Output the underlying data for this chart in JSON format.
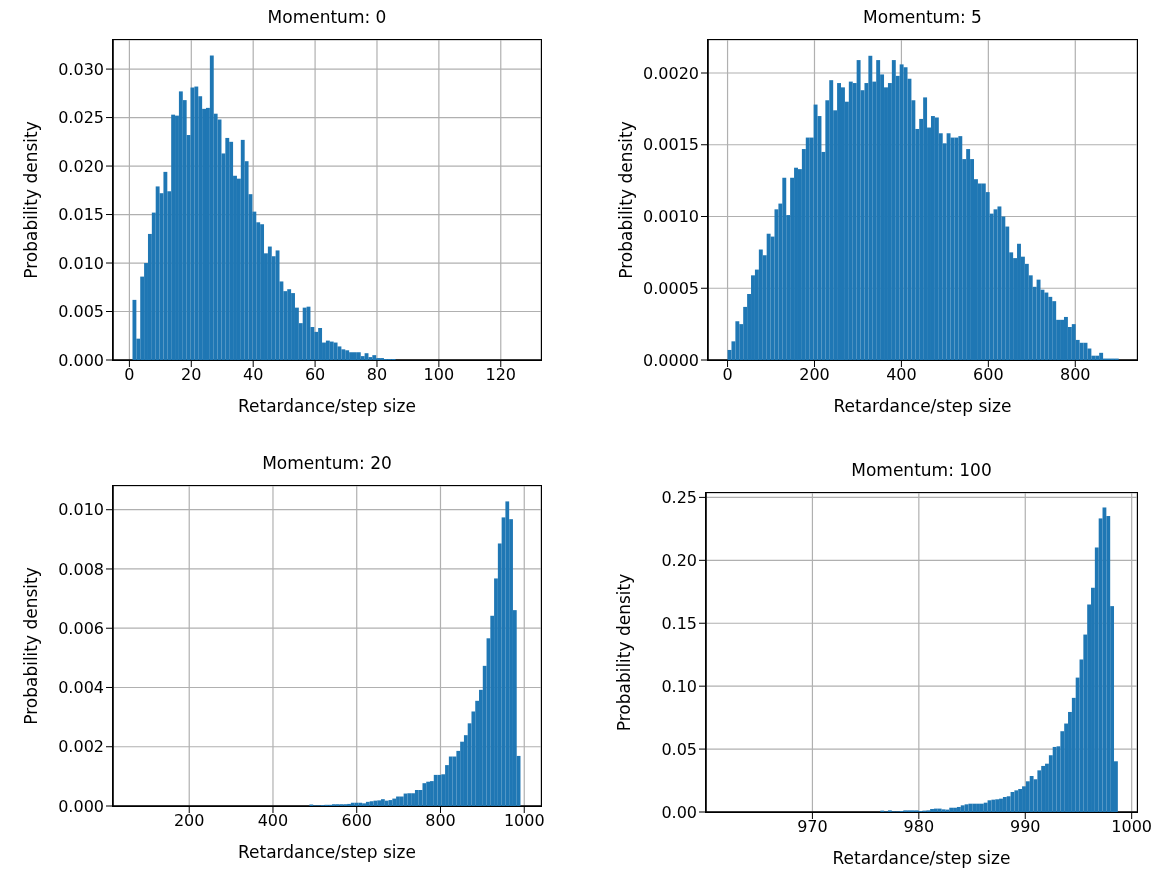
{
  "chart_data": [
    {
      "type": "histogram",
      "title": "Momentum: 0",
      "xlabel": "Retardance/step size",
      "ylabel": "Probability density",
      "color": "#1f77b4",
      "grid": true,
      "xlim": [
        -5.3,
        133
      ],
      "ylim": [
        0,
        0.033
      ],
      "xticks": [
        0,
        20,
        40,
        60,
        80,
        100,
        120
      ],
      "yticks": [
        {
          "value": 0,
          "label": "0.000"
        },
        {
          "value": 0.005,
          "label": "0.005"
        },
        {
          "value": 0.01,
          "label": "0.010"
        },
        {
          "value": 0.015,
          "label": "0.015"
        },
        {
          "value": 0.02,
          "label": "0.020"
        },
        {
          "value": 0.025,
          "label": "0.025"
        },
        {
          "value": 0.03,
          "label": "0.030"
        }
      ],
      "bins": [
        1,
        2.25,
        3.5,
        4.75,
        6,
        7.25,
        8.5,
        9.75,
        11,
        12.25,
        13.5,
        14.75,
        16,
        17.25,
        18.5,
        19.75,
        21,
        22.25,
        23.5,
        24.75,
        26,
        27.25,
        28.5,
        29.75,
        31,
        32.25,
        33.5,
        34.75,
        36,
        37.25,
        38.5,
        39.75,
        41,
        42.25,
        43.5,
        44.75,
        46,
        47.25,
        48.5,
        49.75,
        51,
        52.25,
        53.5,
        54.75,
        56,
        57.25,
        58.5,
        59.75,
        61,
        62.25,
        63.5,
        64.75,
        66,
        67.25,
        68.5,
        69.75,
        71,
        72.25,
        73.5,
        74.75,
        76,
        77.25,
        78.5,
        79.75,
        81,
        82.25,
        83.5,
        84.75,
        86
      ],
      "values": [
        0.0062,
        0.0022,
        0.0086,
        0.01,
        0.013,
        0.0152,
        0.0179,
        0.0172,
        0.0194,
        0.0174,
        0.0253,
        0.0252,
        0.0277,
        0.0268,
        0.0232,
        0.0281,
        0.0282,
        0.0272,
        0.0259,
        0.026,
        0.0314,
        0.0254,
        0.0248,
        0.0213,
        0.0229,
        0.0225,
        0.019,
        0.0187,
        0.0227,
        0.0205,
        0.0171,
        0.0153,
        0.0142,
        0.014,
        0.011,
        0.0117,
        0.0107,
        0.0113,
        0.0081,
        0.0071,
        0.0073,
        0.0069,
        0.0054,
        0.0038,
        0.0054,
        0.0055,
        0.0034,
        0.0029,
        0.0033,
        0.0018,
        0.002,
        0.0019,
        0.0018,
        0.0014,
        0.0011,
        0.001,
        0.0008,
        0.0008,
        0.0008,
        0.0004,
        0.0007,
        0.0003,
        0.0005,
        0.0002,
        0.0002,
        0.0001,
        0.0001,
        0.0001
      ]
    },
    {
      "type": "histogram",
      "title": "Momentum: 5",
      "xlabel": "Retardance/step size",
      "ylabel": "Probability density",
      "color": "#1f77b4",
      "grid": true,
      "xlim": [
        -45,
        942
      ],
      "ylim": [
        0,
        0.00223
      ],
      "xticks": [
        0,
        200,
        400,
        600,
        800
      ],
      "yticks": [
        {
          "value": 0,
          "label": "0.0000"
        },
        {
          "value": 0.0005,
          "label": "0.0005"
        },
        {
          "value": 0.001,
          "label": "0.0010"
        },
        {
          "value": 0.0015,
          "label": "0.0015"
        },
        {
          "value": 0.002,
          "label": "0.0020"
        }
      ],
      "bins": [
        0,
        9,
        18,
        27,
        36,
        45,
        54,
        63,
        72,
        81,
        90,
        99,
        108,
        117,
        126,
        135,
        144,
        153,
        162,
        171,
        180,
        189,
        198,
        207,
        216,
        225,
        234,
        243,
        252,
        261,
        270,
        279,
        288,
        297,
        306,
        315,
        324,
        333,
        342,
        351,
        360,
        369,
        378,
        387,
        396,
        405,
        414,
        423,
        432,
        441,
        450,
        459,
        468,
        477,
        486,
        495,
        504,
        513,
        522,
        531,
        540,
        549,
        558,
        567,
        576,
        585,
        594,
        603,
        612,
        621,
        630,
        639,
        648,
        657,
        666,
        675,
        684,
        693,
        702,
        711,
        720,
        729,
        738,
        747,
        756,
        765,
        774,
        783,
        792,
        801,
        810,
        819,
        828,
        837,
        846,
        855,
        864,
        873,
        882,
        891,
        900
      ],
      "values": [
        7e-05,
        0.00013,
        0.00027,
        0.00025,
        0.00037,
        0.00046,
        0.00059,
        0.00063,
        0.00077,
        0.00073,
        0.00088,
        0.00086,
        0.00105,
        0.00109,
        0.00127,
        0.00101,
        0.00127,
        0.00134,
        0.00133,
        0.00147,
        0.00155,
        0.00155,
        0.00178,
        0.0017,
        0.00145,
        0.00181,
        0.00195,
        0.00174,
        0.00193,
        0.0019,
        0.0018,
        0.00194,
        0.00193,
        0.00209,
        0.00188,
        0.00193,
        0.00212,
        0.00194,
        0.00209,
        0.00199,
        0.0019,
        0.00193,
        0.00209,
        0.00198,
        0.00206,
        0.00204,
        0.00196,
        0.00181,
        0.00161,
        0.00168,
        0.00183,
        0.00162,
        0.0017,
        0.00169,
        0.00158,
        0.00151,
        0.00158,
        0.00155,
        0.00155,
        0.00156,
        0.0014,
        0.00147,
        0.0014,
        0.00126,
        0.00123,
        0.00123,
        0.00117,
        0.00102,
        0.00105,
        0.00107,
        0.001,
        0.00093,
        0.00075,
        0.00071,
        0.00081,
        0.00072,
        0.00067,
        0.00059,
        0.00051,
        0.00056,
        0.00049,
        0.00047,
        0.00044,
        0.00041,
        0.00028,
        0.00028,
        0.0003,
        0.00023,
        0.00025,
        0.00014,
        0.00012,
        0.00012,
        8e-05,
        3e-05,
        3e-05,
        5e-05,
        1e-05,
        1e-05,
        1e-05,
        1e-05
      ]
    },
    {
      "type": "histogram",
      "title": "Momentum: 20",
      "xlabel": "Retardance/step size",
      "ylabel": "Probability density",
      "color": "#1f77b4",
      "grid": true,
      "xlim": [
        18,
        1040
      ],
      "ylim": [
        0,
        0.0108
      ],
      "xticks": [
        200,
        400,
        600,
        800,
        1000
      ],
      "yticks": [
        {
          "value": 0,
          "label": "0.000"
        },
        {
          "value": 0.002,
          "label": "0.002"
        },
        {
          "value": 0.004,
          "label": "0.004"
        },
        {
          "value": 0.006,
          "label": "0.006"
        },
        {
          "value": 0.008,
          "label": "0.008"
        },
        {
          "value": 0.01,
          "label": "0.010"
        }
      ],
      "bins": [
        487,
        496,
        505,
        514,
        523,
        532,
        541,
        550,
        559,
        568,
        577,
        586,
        595,
        604,
        613,
        622,
        631,
        640,
        649,
        658,
        667,
        676,
        685,
        694,
        703,
        712,
        721,
        730,
        739,
        748,
        757,
        766,
        775,
        784,
        793,
        802,
        811,
        820,
        829,
        838,
        847,
        856,
        865,
        874,
        883,
        892,
        901,
        910,
        919,
        928,
        937,
        946,
        955,
        964,
        973,
        982,
        991
      ],
      "values": [
        5e-05,
        2e-05,
        2e-05,
        3e-05,
        4e-05,
        4e-05,
        6e-05,
        6e-05,
        6e-05,
        6e-05,
        7e-05,
        0.00011,
        0.00011,
        0.00011,
        9e-05,
        0.00014,
        0.00016,
        0.00018,
        0.00019,
        0.00023,
        0.00018,
        0.0002,
        0.00025,
        0.00032,
        0.00032,
        0.00042,
        0.00043,
        0.00043,
        0.00054,
        0.00054,
        0.00077,
        0.00082,
        0.00084,
        0.00105,
        0.00105,
        0.00107,
        0.00138,
        0.00167,
        0.00167,
        0.00186,
        0.00217,
        0.00239,
        0.00279,
        0.00319,
        0.00355,
        0.00392,
        0.00473,
        0.00566,
        0.00642,
        0.00768,
        0.00886,
        0.00974,
        0.01028,
        0.00968,
        0.00661,
        0.00169
      ]
    },
    {
      "type": "histogram",
      "title": "Momentum: 100",
      "xlabel": "Retardance/step size",
      "ylabel": "Probability density",
      "color": "#1f77b4",
      "grid": true,
      "xlim": [
        960,
        1000.5
      ],
      "ylim": [
        0,
        0.2535
      ],
      "xticks": [
        970,
        980,
        990,
        1000
      ],
      "yticks": [
        {
          "value": 0,
          "label": "0.00"
        },
        {
          "value": 0.05,
          "label": "0.05"
        },
        {
          "value": 0.1,
          "label": "0.10"
        },
        {
          "value": 0.15,
          "label": "0.15"
        },
        {
          "value": 0.2,
          "label": "0.20"
        },
        {
          "value": 0.25,
          "label": "0.25"
        }
      ],
      "bins": [
        976.38,
        976.74,
        977.1,
        977.46,
        977.82,
        978.18,
        978.54,
        978.9,
        979.26,
        979.62,
        979.98,
        980.34,
        980.7,
        981.06,
        981.42,
        981.78,
        982.14,
        982.5,
        982.86,
        983.22,
        983.58,
        983.94,
        984.3,
        984.66,
        985.02,
        985.38,
        985.74,
        986.1,
        986.46,
        986.82,
        987.18,
        987.54,
        987.9,
        988.26,
        988.62,
        988.98,
        989.34,
        989.7,
        990.06,
        990.42,
        990.78,
        991.14,
        991.5,
        991.86,
        992.22,
        992.58,
        992.94,
        993.3,
        993.66,
        994.02,
        994.38,
        994.74,
        995.1,
        995.46,
        995.82,
        996.18,
        996.54,
        996.9,
        997.26,
        997.62,
        997.98,
        998.34,
        998.7
      ],
      "values": [
        0.0011,
        0.0005,
        0.0013,
        0.0005,
        0.0005,
        0.0008,
        0.0013,
        0.0013,
        0.0013,
        0.0013,
        0.0008,
        0.0011,
        0.0013,
        0.0024,
        0.0027,
        0.0027,
        0.0021,
        0.0019,
        0.0034,
        0.0034,
        0.004,
        0.0053,
        0.0061,
        0.0066,
        0.0066,
        0.0066,
        0.0066,
        0.0074,
        0.0093,
        0.0098,
        0.0101,
        0.0106,
        0.0119,
        0.0125,
        0.0159,
        0.0172,
        0.0183,
        0.0204,
        0.0244,
        0.0286,
        0.026,
        0.0331,
        0.0366,
        0.0384,
        0.0451,
        0.0517,
        0.0522,
        0.0642,
        0.0703,
        0.0795,
        0.0907,
        0.1068,
        0.1212,
        0.141,
        0.1649,
        0.1782,
        0.2102,
        0.2333,
        0.242,
        0.2352,
        0.1636,
        0.0403
      ]
    }
  ]
}
